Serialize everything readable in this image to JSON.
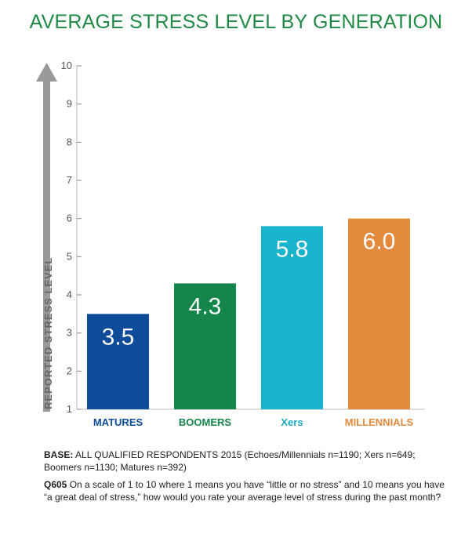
{
  "chart_data": {
    "type": "bar",
    "title": "AVERAGE STRESS LEVEL BY GENERATION",
    "ylabel": "REPORTED STRESS LEVEL",
    "xlabel": "",
    "ylim": [
      1,
      10
    ],
    "yticks": [
      "1",
      "2",
      "3",
      "4",
      "5",
      "6",
      "7",
      "8",
      "9",
      "10"
    ],
    "categories": [
      "MATURES",
      "BOOMERS",
      "Xers",
      "MILLENNIALS"
    ],
    "values": [
      3.5,
      4.3,
      5.8,
      6.0
    ],
    "value_labels": [
      "3.5",
      "4.3",
      "5.8",
      "6.0"
    ],
    "colors": [
      "#0e4c9a",
      "#15864a",
      "#18b3cc",
      "#e48a3c"
    ],
    "label_colors": [
      "#0e4c9a",
      "#15864a",
      "#18a9c6",
      "#e48a3c"
    ],
    "grid": false,
    "legend": "none"
  },
  "notes": {
    "base_label": "BASE:",
    "base_text": "ALL QUALIFIED RESPONDENTS 2015 (Echoes/Millennials n=1190; Xers n=649; Boomers n=1130; Matures n=392)",
    "question_label": "Q605",
    "question_text": "On a scale of 1 to 10 where 1 means you have “little or no stress” and 10 means you have “a great deal of stress,” how would you rate your average level of stress during the past month?"
  }
}
